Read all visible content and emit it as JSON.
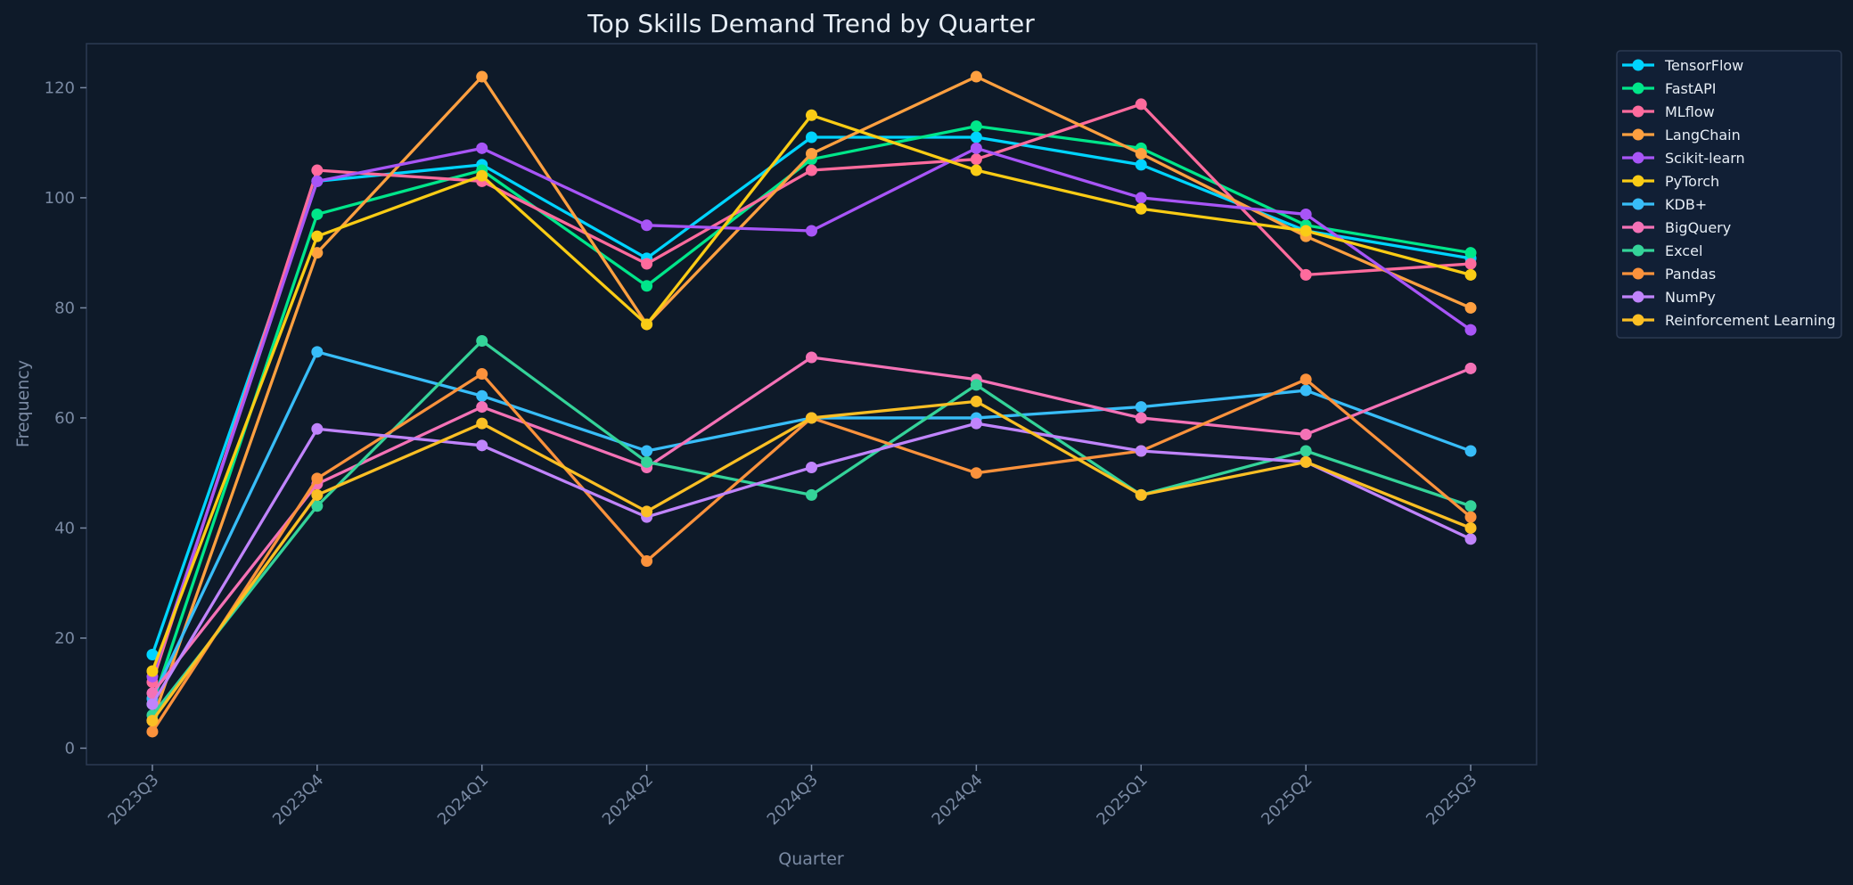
{
  "chart_data": {
    "type": "line",
    "title": "Top Skills Demand Trend by Quarter",
    "xlabel": "Quarter",
    "ylabel": "Frequency",
    "categories": [
      "2023Q3",
      "2023Q4",
      "2024Q1",
      "2024Q2",
      "2024Q3",
      "2024Q4",
      "2025Q1",
      "2025Q2",
      "2025Q3"
    ],
    "ylim": [
      -3,
      128
    ],
    "yticks": [
      0,
      20,
      40,
      60,
      80,
      100,
      120
    ],
    "grid": false,
    "legend_position": "outside-top-right",
    "series": [
      {
        "name": "TensorFlow",
        "color": "#00d4ff",
        "values": [
          17,
          103,
          106,
          89,
          111,
          111,
          106,
          94,
          89
        ]
      },
      {
        "name": "FastAPI",
        "color": "#00e68a",
        "values": [
          8,
          97,
          105,
          84,
          107,
          113,
          109,
          95,
          90
        ]
      },
      {
        "name": "MLflow",
        "color": "#ff6b9d",
        "values": [
          12,
          105,
          103,
          88,
          105,
          107,
          117,
          86,
          88
        ]
      },
      {
        "name": "LangChain",
        "color": "#ffa040",
        "values": [
          5,
          90,
          122,
          77,
          108,
          122,
          108,
          93,
          80
        ]
      },
      {
        "name": "Scikit-learn",
        "color": "#a855f7",
        "values": [
          13,
          103,
          109,
          95,
          94,
          109,
          100,
          97,
          76
        ]
      },
      {
        "name": "PyTorch",
        "color": "#facc15",
        "values": [
          14,
          93,
          104,
          77,
          115,
          105,
          98,
          94,
          86
        ]
      },
      {
        "name": "KDB+",
        "color": "#38bdf8",
        "values": [
          9,
          72,
          64,
          54,
          60,
          60,
          62,
          65,
          54
        ]
      },
      {
        "name": "BigQuery",
        "color": "#f472b6",
        "values": [
          10,
          48,
          62,
          51,
          71,
          67,
          60,
          57,
          69
        ]
      },
      {
        "name": "Excel",
        "color": "#34d399",
        "values": [
          6,
          44,
          74,
          52,
          46,
          66,
          46,
          54,
          44
        ]
      },
      {
        "name": "Pandas",
        "color": "#fb923c",
        "values": [
          3,
          49,
          68,
          34,
          60,
          50,
          54,
          67,
          42
        ]
      },
      {
        "name": "NumPy",
        "color": "#c084fc",
        "values": [
          8,
          58,
          55,
          42,
          51,
          59,
          54,
          52,
          38
        ]
      },
      {
        "name": "Reinforcement Learning",
        "color": "#fbbf24",
        "values": [
          5,
          46,
          59,
          43,
          60,
          63,
          46,
          52,
          40
        ]
      }
    ]
  }
}
